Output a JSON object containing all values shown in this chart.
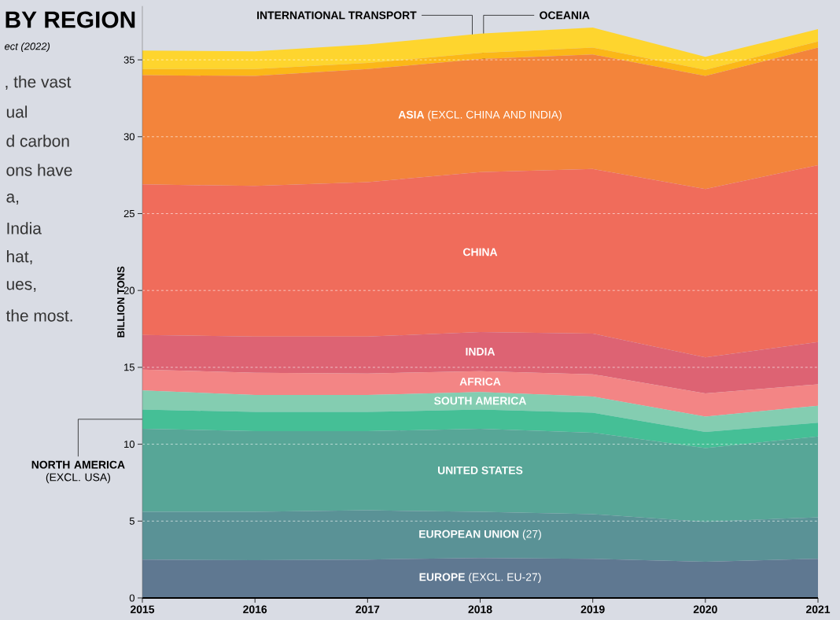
{
  "chart_data": {
    "type": "area",
    "stacked": true,
    "title": "BY REGION",
    "subtitle": "ect (2022)",
    "ylabel": "BILLION TONS",
    "annotations": [
      ", the vast",
      "ual",
      "d carbon",
      "ons have",
      "a,",
      "India",
      "hat,",
      "ues,",
      "the most."
    ],
    "x": [
      2015,
      2016,
      2017,
      2018,
      2019,
      2020,
      2021
    ],
    "xlim": [
      2015,
      2021
    ],
    "xticks": [
      2015,
      2016,
      2017,
      2018,
      2019,
      2020,
      2021
    ],
    "ylim": [
      0,
      38.5
    ],
    "yticks": [
      0,
      5,
      10,
      15,
      20,
      25,
      30,
      35
    ],
    "grid": "y",
    "legend": false,
    "series": [
      {
        "name": "**EUROPE** (EXCL. EU-27)",
        "color": "#5f7891",
        "values": [
          2.5,
          2.45,
          2.5,
          2.6,
          2.55,
          2.35,
          2.55
        ]
      },
      {
        "name": "**EUROPEAN UNION** (27)",
        "color": "#5a9296",
        "values": [
          3.1,
          3.15,
          3.2,
          3.0,
          2.9,
          2.6,
          2.7
        ]
      },
      {
        "name": "UNITED STATES",
        "color": "#57a697",
        "values": [
          5.4,
          5.25,
          5.15,
          5.4,
          5.3,
          4.8,
          5.25
        ]
      },
      {
        "name": "**NORTH AMERICA** (EXCL. USA)",
        "color": "#45bf96",
        "values": [
          1.25,
          1.25,
          1.25,
          1.25,
          1.3,
          1.05,
          0.9
        ]
      },
      {
        "name": "SOUTH AMERICA",
        "color": "#84cdb1",
        "values": [
          1.25,
          1.1,
          1.1,
          1.15,
          1.05,
          1.0,
          1.1
        ]
      },
      {
        "name": "AFRICA",
        "color": "#f38585",
        "values": [
          1.35,
          1.45,
          1.4,
          1.35,
          1.45,
          1.5,
          1.4
        ]
      },
      {
        "name": "INDIA",
        "color": "#dd6373",
        "values": [
          2.25,
          2.35,
          2.4,
          2.55,
          2.65,
          2.35,
          2.75
        ]
      },
      {
        "name": "CHINA",
        "color": "#f06c5b",
        "values": [
          9.8,
          9.8,
          10.05,
          10.4,
          10.7,
          10.95,
          11.5
        ]
      },
      {
        "name": "**ASIA** (EXCL. CHINA AND INDIA)",
        "color": "#f3843b",
        "values": [
          7.1,
          7.15,
          7.35,
          7.35,
          7.45,
          7.35,
          7.65
        ]
      },
      {
        "name": "OCEANIA",
        "color": "#fbb718",
        "values": [
          0.4,
          0.45,
          0.4,
          0.4,
          0.45,
          0.4,
          0.4
        ]
      },
      {
        "name": "INTERNATIONAL TRANSPORT",
        "color": "#fed52e",
        "values": [
          1.2,
          1.15,
          1.2,
          1.25,
          1.3,
          0.85,
          0.8
        ]
      }
    ]
  }
}
